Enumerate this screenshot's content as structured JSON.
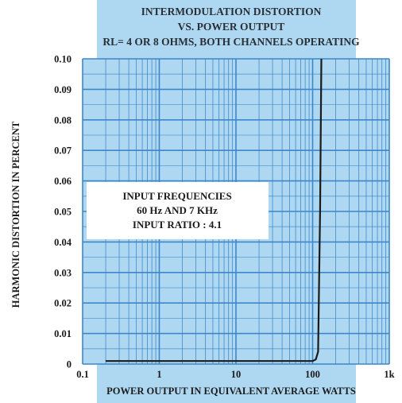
{
  "chart_data": {
    "type": "line",
    "title_lines": [
      "INTERMODULATION DISTORTION",
      "VS. POWER OUTPUT",
      "RL= 4 OR 8 OHMS, BOTH CHANNELS OPERATING"
    ],
    "xlabel": "POWER OUTPUT IN EQUIVALENT AVERAGE WATTS",
    "ylabel": "HARMONIC DISTORTION IN PERCENT",
    "x_scale": "log",
    "xlim": [
      0.1,
      1000
    ],
    "ylim": [
      0,
      0.1
    ],
    "x_ticks": [
      {
        "value": 0.1,
        "label": "0.1"
      },
      {
        "value": 1,
        "label": "1"
      },
      {
        "value": 10,
        "label": "10"
      },
      {
        "value": 100,
        "label": "100"
      },
      {
        "value": 1000,
        "label": "1k"
      }
    ],
    "y_ticks": [
      {
        "value": 0,
        "label": "0"
      },
      {
        "value": 0.01,
        "label": "0.01"
      },
      {
        "value": 0.02,
        "label": "0.02"
      },
      {
        "value": 0.03,
        "label": "0.03"
      },
      {
        "value": 0.04,
        "label": "0.04"
      },
      {
        "value": 0.05,
        "label": "0.05"
      },
      {
        "value": 0.06,
        "label": "0.06"
      },
      {
        "value": 0.07,
        "label": "0.07"
      },
      {
        "value": 0.08,
        "label": "0.08"
      },
      {
        "value": 0.09,
        "label": "0.09"
      },
      {
        "value": 0.1,
        "label": "0.10"
      }
    ],
    "grid": true,
    "series": [
      {
        "x": [
          0.2,
          1,
          10,
          50,
          100,
          110,
          118,
          125,
          130
        ],
        "y": [
          0.001,
          0.001,
          0.001,
          0.001,
          0.001,
          0.0015,
          0.004,
          0.05,
          0.1
        ]
      }
    ],
    "annotation": {
      "lines": [
        "INPUT FREQUENCIES",
        "60 Hz AND 7 KHz",
        "INPUT RATIO : 4.1"
      ],
      "position": "center-left"
    },
    "colors": {
      "grid_background": "#aed8f2",
      "grid_line": "#3d86c8",
      "curve": "#1a1a1a",
      "text": "#1b1b1b",
      "title": "#2a2f36"
    }
  }
}
